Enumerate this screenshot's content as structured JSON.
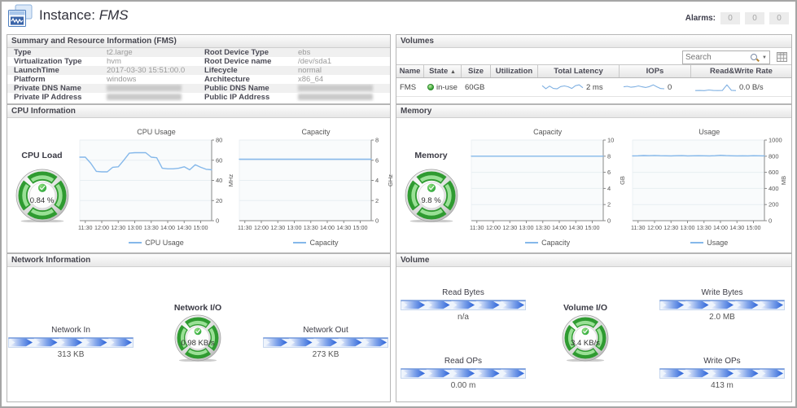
{
  "header": {
    "title_prefix": "Instance:",
    "instance_name": "FMS",
    "alarms_label": "Alarms:",
    "alarm_counts": [
      "0",
      "0",
      "0"
    ]
  },
  "panels": {
    "summary": {
      "title": "Summary and Resource Information (FMS)",
      "rows": [
        {
          "l_label": "Type",
          "l_value": "t2.large",
          "r_label": "Root Device Type",
          "r_value": "ebs"
        },
        {
          "l_label": "Virtualization Type",
          "l_value": "hvm",
          "r_label": "Root Device name",
          "r_value": "/dev/sda1"
        },
        {
          "l_label": "LaunchTime",
          "l_value": "2017-03-30 15:51:00.0",
          "r_label": "Lifecycle",
          "r_value": "normal"
        },
        {
          "l_label": "Platform",
          "l_value": "windows",
          "r_label": "Architecture",
          "r_value": "x86_64"
        },
        {
          "l_label": "Private DNS Name",
          "l_value": "",
          "l_redacted": true,
          "r_label": "Public DNS Name",
          "r_value": "",
          "r_redacted": true
        },
        {
          "l_label": "Private IP Address",
          "l_value": "",
          "l_redacted": true,
          "r_label": "Public IP Address",
          "r_value": "",
          "r_redacted": true
        }
      ]
    },
    "volumes": {
      "title": "Volumes",
      "search_placeholder": "Search",
      "sort_icon": "▲",
      "columns": [
        "Name",
        "State",
        "Size",
        "Utilization",
        "Total Latency",
        "IOPs",
        "Read&Write Rate"
      ],
      "row": {
        "name": "FMS",
        "state": "in-use",
        "size": "60GB",
        "utilization": "",
        "latency": "2 ms",
        "iops": "0",
        "rw_rate": "0.0 B/s"
      }
    },
    "cpu": {
      "title": "CPU Information",
      "gauge_label": "CPU Load",
      "gauge_value": "0.84 %"
    },
    "memory": {
      "title": "Memory",
      "gauge_label": "Memory",
      "gauge_value": "9.8 %"
    },
    "network": {
      "title": "Network Information",
      "in_label": "Network In",
      "in_value": "313 KB",
      "gauge_label": "Network I/O",
      "gauge_value": "0.98 KB/s",
      "out_label": "Network Out",
      "out_value": "273 KB"
    },
    "volume": {
      "title": "Volume",
      "read_bytes_label": "Read Bytes",
      "read_bytes_value": "n/a",
      "write_bytes_label": "Write Bytes",
      "write_bytes_value": "2.0 MB",
      "gauge_label": "Volume I/O",
      "gauge_value": "3.4 KB/s",
      "read_ops_label": "Read OPs",
      "read_ops_value": "0.00 m",
      "write_ops_label": "Write OPs",
      "write_ops_value": "413 m"
    }
  },
  "chart_data": [
    {
      "id": "cpu_usage",
      "type": "line",
      "title": "CPU Usage",
      "legend": "CPU Usage",
      "ylabel": "MHz",
      "ylim": [
        0,
        80
      ],
      "yticks": [
        0,
        20,
        40,
        60,
        80
      ],
      "grid": true,
      "legend_position": "bottom",
      "x_tick_labels": [
        "11:30",
        "12:00",
        "12:30",
        "13:00",
        "13:30",
        "14:00",
        "14:30",
        "15:00"
      ],
      "x_tick_indices": [
        1,
        4,
        7,
        10,
        13,
        16,
        19,
        22
      ],
      "values": [
        63,
        63,
        57,
        49,
        48.5,
        48.5,
        53,
        53.5,
        60,
        67,
        67.5,
        67.5,
        67.5,
        63,
        62.5,
        52,
        51.5,
        51.5,
        52,
        53.5,
        50.5,
        55.5,
        53,
        51,
        50.5
      ]
    },
    {
      "id": "cpu_capacity",
      "type": "line",
      "title": "Capacity",
      "legend": "Capacity",
      "ylabel": "GHz",
      "ylim": [
        0,
        8
      ],
      "yticks": [
        0,
        2,
        4,
        6,
        8
      ],
      "grid": true,
      "legend_position": "bottom",
      "x_tick_labels": [
        "11:30",
        "12:00",
        "12:30",
        "13:00",
        "13:30",
        "14:00",
        "14:30",
        "15:00"
      ],
      "x_tick_indices": [
        1,
        4,
        7,
        10,
        13,
        16,
        19,
        22
      ],
      "values": [
        6.1,
        6.1,
        6.1,
        6.1,
        6.1,
        6.1,
        6.1,
        6.1,
        6.1,
        6.1,
        6.1,
        6.1,
        6.1,
        6.1,
        6.1,
        6.1,
        6.1,
        6.1,
        6.1,
        6.1,
        6.1,
        6.1,
        6.1,
        6.1,
        6.1
      ]
    },
    {
      "id": "memory_capacity",
      "type": "line",
      "title": "Capacity",
      "legend": "Capacity",
      "ylabel": "GB",
      "ylim": [
        0,
        10
      ],
      "yticks": [
        0,
        2,
        4,
        6,
        8,
        10
      ],
      "grid": true,
      "legend_position": "bottom",
      "x_tick_labels": [
        "11:30",
        "12:00",
        "12:30",
        "13:00",
        "13:30",
        "14:00",
        "14:30",
        "15:00"
      ],
      "x_tick_indices": [
        1,
        4,
        7,
        10,
        13,
        16,
        19,
        22
      ],
      "values": [
        8,
        8,
        8,
        8,
        8,
        8,
        8,
        8,
        8,
        8,
        8,
        8,
        8,
        8,
        8,
        8,
        8,
        8,
        8,
        8,
        8,
        8,
        8,
        8,
        8
      ]
    },
    {
      "id": "memory_usage",
      "type": "line",
      "title": "Usage",
      "legend": "Usage",
      "ylabel": "MB",
      "ylim": [
        0,
        1000
      ],
      "yticks": [
        0,
        200,
        400,
        600,
        800,
        1000
      ],
      "grid": true,
      "legend_position": "bottom",
      "x_tick_labels": [
        "11:30",
        "12:00",
        "12:30",
        "13:00",
        "13:30",
        "14:00",
        "14:30",
        "15:00"
      ],
      "x_tick_indices": [
        1,
        4,
        7,
        10,
        13,
        16,
        19,
        22
      ],
      "values": [
        804,
        805,
        808,
        806,
        809,
        806,
        805,
        804,
        806,
        807,
        804,
        805,
        806,
        805,
        804,
        806,
        811,
        807,
        805,
        804,
        805,
        804,
        806,
        805,
        804
      ]
    },
    {
      "id": "latency_spark",
      "type": "sparkline",
      "values": [
        2.6,
        1.2,
        2.4,
        1.3,
        1.1,
        2.2,
        2.5,
        2.1,
        1.3,
        2.6,
        3.0,
        1.6
      ]
    },
    {
      "id": "iops_spark",
      "type": "sparkline",
      "values": [
        0.5,
        0.55,
        0.45,
        0.5,
        0.6,
        0.5,
        0.42,
        0.52,
        0.72,
        0.5,
        0.3,
        0.28
      ]
    },
    {
      "id": "rw_spark",
      "type": "sparkline",
      "values": [
        0.25,
        0.3,
        0.24,
        0.5,
        0.3,
        0.25,
        0.3,
        2.6,
        0.35,
        0.25
      ]
    }
  ]
}
